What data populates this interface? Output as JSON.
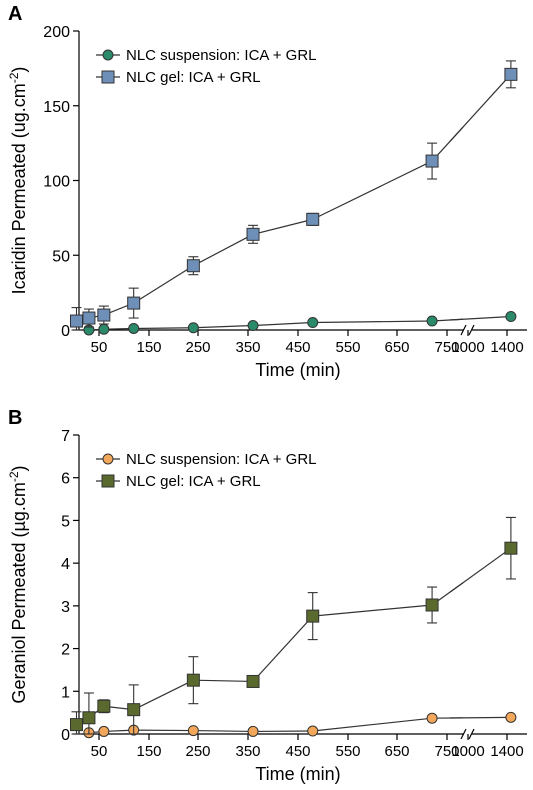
{
  "chart_data": [
    {
      "type": "scatter",
      "panel_label": "A",
      "ylabel": "Icaridin Permeated (ug.cm",
      "ylabel_sup": "-2",
      "ylabel_close": ")",
      "xlabel": "Time (min)",
      "ylim": [
        0,
        200
      ],
      "yticks": [
        "0",
        "50",
        "100",
        "150",
        "200"
      ],
      "xticks": [
        "50",
        "150",
        "250",
        "350",
        "450",
        "550",
        "650",
        "750",
        "1000",
        "1400"
      ],
      "x_axis_break_between": [
        750,
        1000
      ],
      "grid": false,
      "legend_position": "top-left",
      "series": [
        {
          "name": "NLC suspension: ICA + GRL",
          "marker": "circle",
          "color": "#2a8a6a",
          "points": [
            {
              "x": 30,
              "y": 0,
              "err": 0
            },
            {
              "x": 60,
              "y": 0.5,
              "err": 0
            },
            {
              "x": 120,
              "y": 1,
              "err": 0
            },
            {
              "x": 240,
              "y": 1.5,
              "err": 0
            },
            {
              "x": 360,
              "y": 3,
              "err": 0
            },
            {
              "x": 480,
              "y": 5,
              "err": 0
            },
            {
              "x": 720,
              "y": 6,
              "err": 0
            },
            {
              "x": 1440,
              "y": 9,
              "err": 0
            }
          ]
        },
        {
          "name": "NLC gel: ICA + GRL",
          "marker": "square",
          "color": "#6e8fb8",
          "points": [
            {
              "x": 5,
              "y": 6,
              "err": 9
            },
            {
              "x": 30,
              "y": 8,
              "err": 6
            },
            {
              "x": 60,
              "y": 10,
              "err": 6
            },
            {
              "x": 120,
              "y": 18,
              "err": 10
            },
            {
              "x": 240,
              "y": 43,
              "err": 6
            },
            {
              "x": 360,
              "y": 64,
              "err": 6
            },
            {
              "x": 480,
              "y": 74,
              "err": 4
            },
            {
              "x": 720,
              "y": 113,
              "err": 12
            },
            {
              "x": 1440,
              "y": 171,
              "err": 9
            }
          ]
        }
      ]
    },
    {
      "type": "scatter",
      "panel_label": "B",
      "ylabel": "Geraniol Permeated (µg.cm",
      "ylabel_sup": "-2",
      "ylabel_close": ")",
      "xlabel": "Time (min)",
      "ylim": [
        0,
        7
      ],
      "yticks": [
        "0",
        "1",
        "2",
        "3",
        "4",
        "5",
        "6",
        "7"
      ],
      "xticks": [
        "50",
        "150",
        "250",
        "350",
        "450",
        "550",
        "650",
        "750",
        "1000",
        "1400"
      ],
      "x_axis_break_between": [
        750,
        1000
      ],
      "grid": false,
      "legend_position": "top-left",
      "series": [
        {
          "name": "NLC suspension: ICA + GRL",
          "marker": "circle",
          "color": "#f2a75a",
          "points": [
            {
              "x": 30,
              "y": 0.03,
              "err": 0
            },
            {
              "x": 60,
              "y": 0.06,
              "err": 0
            },
            {
              "x": 120,
              "y": 0.09,
              "err": 0
            },
            {
              "x": 240,
              "y": 0.08,
              "err": 0
            },
            {
              "x": 360,
              "y": 0.06,
              "err": 0
            },
            {
              "x": 480,
              "y": 0.07,
              "err": 0
            },
            {
              "x": 720,
              "y": 0.37,
              "err": 0
            },
            {
              "x": 1440,
              "y": 0.39,
              "err": 0
            }
          ]
        },
        {
          "name": "NLC gel: ICA + GRL",
          "marker": "square",
          "color": "#5a6a2e",
          "points": [
            {
              "x": 5,
              "y": 0.22,
              "err": 0.3
            },
            {
              "x": 30,
              "y": 0.38,
              "err": 0.58
            },
            {
              "x": 60,
              "y": 0.65,
              "err": 0.15
            },
            {
              "x": 120,
              "y": 0.57,
              "err": 0.58
            },
            {
              "x": 240,
              "y": 1.26,
              "err": 0.55
            },
            {
              "x": 360,
              "y": 1.23,
              "err": 0.1
            },
            {
              "x": 480,
              "y": 2.76,
              "err": 0.55
            },
            {
              "x": 720,
              "y": 3.02,
              "err": 0.42
            },
            {
              "x": 1440,
              "y": 4.35,
              "err": 0.72
            }
          ]
        }
      ]
    }
  ]
}
